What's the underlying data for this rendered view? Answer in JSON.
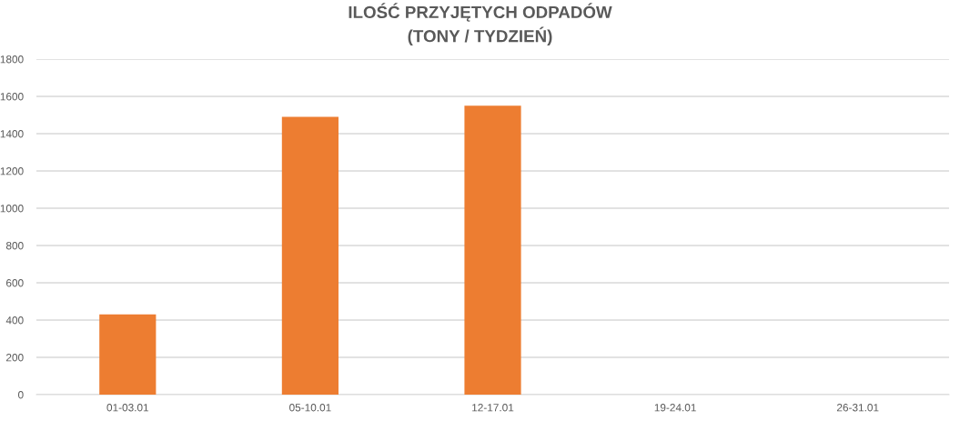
{
  "chart_data": {
    "type": "bar",
    "title": "ILOŚĆ PRZYJĘTYCH ODPADÓW\n(TONY / TYDZIEŃ)",
    "categories": [
      "01-03.01",
      "05-10.01",
      "12-17.01",
      "19-24.01",
      "26-31.01"
    ],
    "values": [
      430,
      1490,
      1550,
      null,
      null
    ],
    "color": "#ed7d31",
    "ylim": [
      0,
      1800
    ],
    "yticks": [
      0,
      200,
      400,
      600,
      800,
      1000,
      1200,
      1400,
      1600,
      1800
    ],
    "grid": "y"
  }
}
